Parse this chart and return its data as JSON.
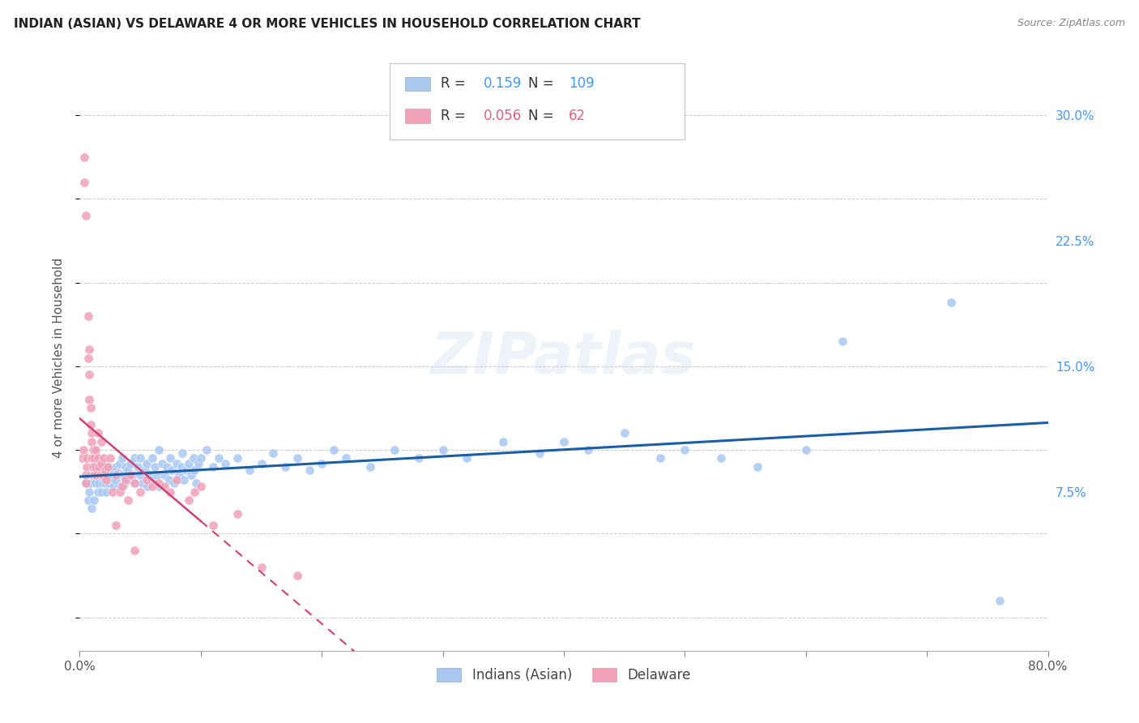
{
  "title": "INDIAN (ASIAN) VS DELAWARE 4 OR MORE VEHICLES IN HOUSEHOLD CORRELATION CHART",
  "source": "Source: ZipAtlas.com",
  "ylabel": "4 or more Vehicles in Household",
  "legend_label1": "Indians (Asian)",
  "legend_label2": "Delaware",
  "R1": 0.159,
  "N1": 109,
  "R2": 0.056,
  "N2": 62,
  "color1": "#a8c8f0",
  "color2": "#f0a0b8",
  "line_color1": "#1a5ea8",
  "line_color2": "#d04070",
  "xlim": [
    0.0,
    0.8
  ],
  "ylim": [
    -0.02,
    0.33
  ],
  "xticks": [
    0.0,
    0.1,
    0.2,
    0.3,
    0.4,
    0.5,
    0.6,
    0.7,
    0.8
  ],
  "yticks_right": [
    0.0,
    0.075,
    0.15,
    0.225,
    0.3
  ],
  "yticklabels_right": [
    "",
    "7.5%",
    "15.0%",
    "22.5%",
    "30.0%"
  ],
  "background_color": "#ffffff",
  "grid_color": "#cccccc",
  "watermark": "ZIPatlas",
  "scatter1_x": [
    0.005,
    0.007,
    0.008,
    0.009,
    0.01,
    0.01,
    0.011,
    0.012,
    0.013,
    0.014,
    0.015,
    0.015,
    0.016,
    0.016,
    0.017,
    0.018,
    0.019,
    0.02,
    0.02,
    0.021,
    0.022,
    0.022,
    0.023,
    0.024,
    0.025,
    0.026,
    0.027,
    0.028,
    0.03,
    0.03,
    0.032,
    0.033,
    0.034,
    0.035,
    0.036,
    0.037,
    0.038,
    0.04,
    0.04,
    0.042,
    0.044,
    0.045,
    0.046,
    0.048,
    0.05,
    0.05,
    0.052,
    0.054,
    0.055,
    0.056,
    0.058,
    0.06,
    0.06,
    0.062,
    0.064,
    0.065,
    0.066,
    0.068,
    0.07,
    0.072,
    0.074,
    0.075,
    0.076,
    0.078,
    0.08,
    0.082,
    0.084,
    0.085,
    0.086,
    0.088,
    0.09,
    0.092,
    0.094,
    0.095,
    0.096,
    0.098,
    0.1,
    0.105,
    0.11,
    0.115,
    0.12,
    0.13,
    0.14,
    0.15,
    0.16,
    0.17,
    0.18,
    0.19,
    0.2,
    0.21,
    0.22,
    0.24,
    0.26,
    0.28,
    0.3,
    0.32,
    0.35,
    0.38,
    0.4,
    0.42,
    0.45,
    0.48,
    0.5,
    0.53,
    0.56,
    0.6,
    0.63,
    0.72,
    0.76
  ],
  "scatter1_y": [
    0.08,
    0.07,
    0.075,
    0.08,
    0.085,
    0.065,
    0.09,
    0.07,
    0.08,
    0.09,
    0.075,
    0.085,
    0.09,
    0.08,
    0.085,
    0.075,
    0.08,
    0.09,
    0.085,
    0.08,
    0.085,
    0.075,
    0.09,
    0.08,
    0.088,
    0.082,
    0.085,
    0.078,
    0.09,
    0.082,
    0.086,
    0.092,
    0.078,
    0.095,
    0.085,
    0.08,
    0.09,
    0.088,
    0.082,
    0.092,
    0.085,
    0.095,
    0.08,
    0.09,
    0.085,
    0.095,
    0.08,
    0.088,
    0.092,
    0.078,
    0.085,
    0.095,
    0.082,
    0.09,
    0.085,
    0.1,
    0.078,
    0.092,
    0.085,
    0.09,
    0.082,
    0.095,
    0.088,
    0.08,
    0.092,
    0.085,
    0.09,
    0.098,
    0.082,
    0.088,
    0.092,
    0.085,
    0.095,
    0.088,
    0.08,
    0.092,
    0.095,
    0.1,
    0.09,
    0.095,
    0.092,
    0.095,
    0.088,
    0.092,
    0.098,
    0.09,
    0.095,
    0.088,
    0.092,
    0.1,
    0.095,
    0.09,
    0.1,
    0.095,
    0.1,
    0.095,
    0.105,
    0.098,
    0.105,
    0.1,
    0.11,
    0.095,
    0.1,
    0.095,
    0.09,
    0.1,
    0.165,
    0.188,
    0.01
  ],
  "scatter2_x": [
    0.002,
    0.003,
    0.004,
    0.004,
    0.005,
    0.005,
    0.005,
    0.006,
    0.006,
    0.007,
    0.007,
    0.008,
    0.008,
    0.008,
    0.009,
    0.009,
    0.01,
    0.01,
    0.01,
    0.011,
    0.011,
    0.012,
    0.012,
    0.013,
    0.013,
    0.014,
    0.015,
    0.015,
    0.016,
    0.017,
    0.018,
    0.018,
    0.019,
    0.02,
    0.021,
    0.022,
    0.023,
    0.025,
    0.027,
    0.03,
    0.033,
    0.035,
    0.038,
    0.04,
    0.042,
    0.045,
    0.05,
    0.055,
    0.06,
    0.065,
    0.07,
    0.075,
    0.08,
    0.09,
    0.095,
    0.1,
    0.11,
    0.13,
    0.15,
    0.18,
    0.03,
    0.045
  ],
  "scatter2_y": [
    0.095,
    0.1,
    0.275,
    0.26,
    0.24,
    0.08,
    0.085,
    0.09,
    0.095,
    0.18,
    0.155,
    0.16,
    0.145,
    0.13,
    0.125,
    0.115,
    0.11,
    0.105,
    0.095,
    0.1,
    0.09,
    0.095,
    0.085,
    0.09,
    0.1,
    0.085,
    0.095,
    0.11,
    0.09,
    0.085,
    0.105,
    0.092,
    0.085,
    0.095,
    0.088,
    0.082,
    0.09,
    0.095,
    0.075,
    0.085,
    0.075,
    0.078,
    0.082,
    0.07,
    0.085,
    0.08,
    0.075,
    0.082,
    0.078,
    0.08,
    0.078,
    0.075,
    0.082,
    0.07,
    0.075,
    0.078,
    0.055,
    0.062,
    0.03,
    0.025,
    0.055,
    0.04
  ]
}
